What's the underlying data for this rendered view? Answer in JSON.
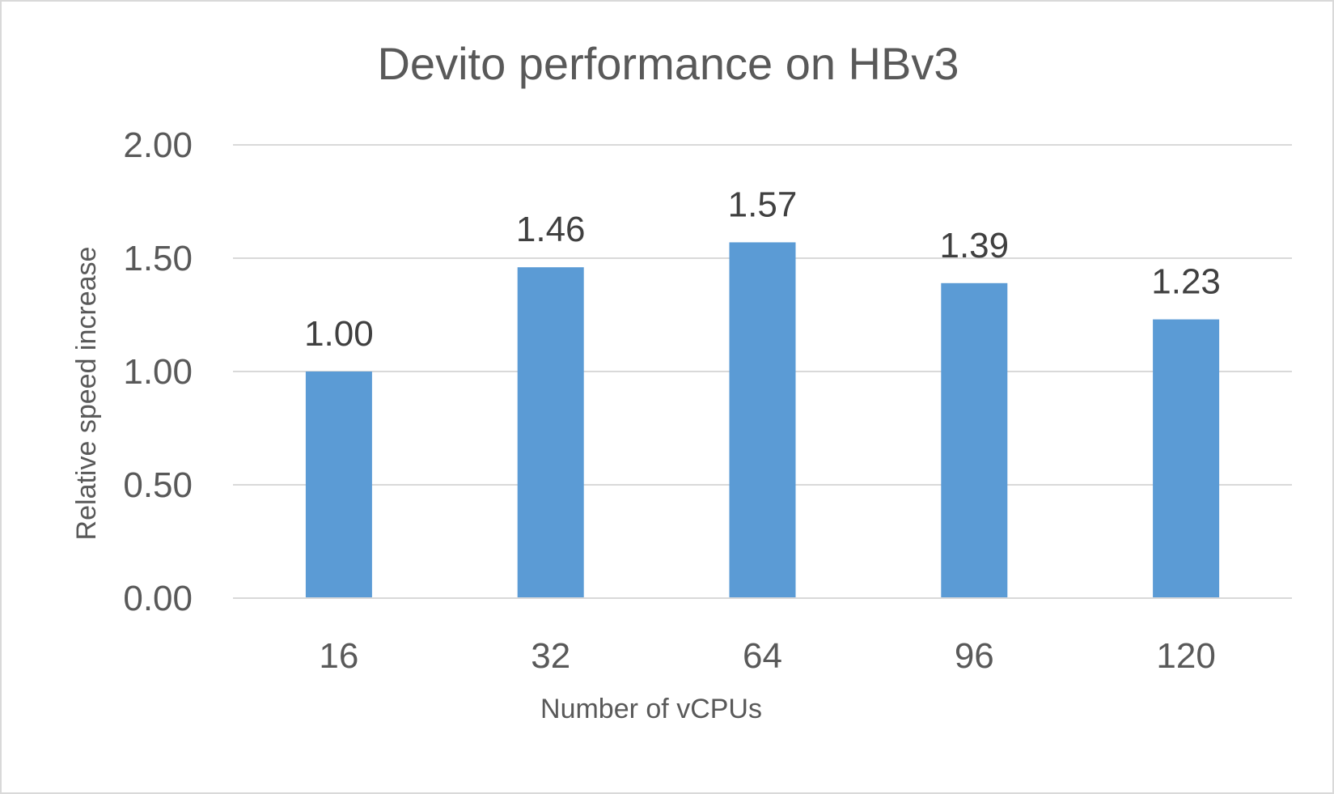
{
  "chart_data": {
    "type": "bar",
    "title": "Devito performance on HBv3",
    "xlabel": "Number of vCPUs",
    "ylabel": "Relative speed increase",
    "categories": [
      "16",
      "32",
      "64",
      "96",
      "120"
    ],
    "values": [
      1.0,
      1.46,
      1.57,
      1.39,
      1.23
    ],
    "data_labels": [
      "1.00",
      "1.46",
      "1.57",
      "1.39",
      "1.23"
    ],
    "ylim": [
      0,
      2
    ],
    "yticks": [
      0,
      0.5,
      1,
      1.5,
      2
    ],
    "ytick_labels": [
      "0.00",
      "0.50",
      "1.00",
      "1.50",
      "2.00"
    ],
    "grid": true,
    "legend": "none",
    "colors": {
      "bar": "#5b9bd5",
      "gridline": "#d9d9d9",
      "text": "#595959",
      "label": "#404040"
    }
  }
}
